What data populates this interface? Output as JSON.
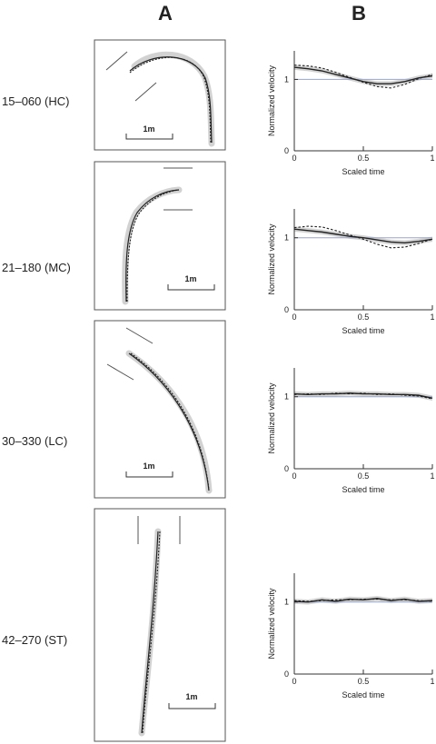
{
  "columns": [
    "A",
    "B"
  ],
  "conditions": [
    "15–060 (HC)",
    "21–180 (MC)",
    "30–330 (LC)",
    "42–270 (ST)"
  ],
  "scale_bar_label": "1m",
  "chart_data": [
    {
      "type": "line",
      "condition": "15–060 (HC)",
      "xlabel": "Scaled time",
      "ylabel": "Normalized velocity",
      "xlim": [
        0,
        1
      ],
      "ylim": [
        0,
        1.4
      ],
      "xticks": [
        "0",
        "0.5",
        "1"
      ],
      "yticks": [
        "0",
        "1"
      ],
      "grid": false,
      "reference_line": 1.0,
      "series": [
        {
          "style": "solid",
          "x": [
            0,
            0.1,
            0.2,
            0.3,
            0.4,
            0.5,
            0.6,
            0.7,
            0.8,
            0.9,
            1.0
          ],
          "y": [
            1.17,
            1.15,
            1.12,
            1.07,
            1.02,
            0.97,
            0.94,
            0.94,
            0.97,
            1.02,
            1.05
          ]
        },
        {
          "style": "dashed",
          "x": [
            0,
            0.1,
            0.2,
            0.3,
            0.4,
            0.5,
            0.6,
            0.7,
            0.8,
            0.9,
            1.0
          ],
          "y": [
            1.2,
            1.19,
            1.16,
            1.1,
            1.03,
            0.96,
            0.9,
            0.88,
            0.93,
            1.01,
            1.07
          ]
        }
      ]
    },
    {
      "type": "line",
      "condition": "21–180 (MC)",
      "xlabel": "Scaled time",
      "ylabel": "Normalized velocity",
      "xlim": [
        0,
        1
      ],
      "ylim": [
        0,
        1.4
      ],
      "xticks": [
        "0",
        "0.5",
        "1"
      ],
      "yticks": [
        "0",
        "1"
      ],
      "grid": false,
      "reference_line": 1.0,
      "series": [
        {
          "style": "solid",
          "x": [
            0,
            0.1,
            0.2,
            0.3,
            0.4,
            0.5,
            0.6,
            0.7,
            0.8,
            0.9,
            1.0
          ],
          "y": [
            1.12,
            1.1,
            1.08,
            1.05,
            1.02,
            1.0,
            0.97,
            0.94,
            0.93,
            0.95,
            0.98
          ]
        },
        {
          "style": "dashed",
          "x": [
            0,
            0.1,
            0.2,
            0.3,
            0.4,
            0.5,
            0.6,
            0.7,
            0.8,
            0.9,
            1.0
          ],
          "y": [
            1.14,
            1.16,
            1.15,
            1.1,
            1.04,
            0.98,
            0.91,
            0.86,
            0.87,
            0.92,
            0.98
          ]
        }
      ]
    },
    {
      "type": "line",
      "condition": "30–330 (LC)",
      "xlabel": "Scaled time",
      "ylabel": "Normalized velocity",
      "xlim": [
        0,
        1
      ],
      "ylim": [
        0,
        1.4
      ],
      "xticks": [
        "0",
        "0.5",
        "1"
      ],
      "yticks": [
        "0",
        "1"
      ],
      "grid": false,
      "reference_line": 1.0,
      "series": [
        {
          "style": "solid",
          "x": [
            0,
            0.1,
            0.2,
            0.3,
            0.4,
            0.5,
            0.6,
            0.7,
            0.8,
            0.9,
            1.0
          ],
          "y": [
            1.04,
            1.03,
            1.04,
            1.04,
            1.05,
            1.04,
            1.04,
            1.03,
            1.03,
            1.02,
            0.98
          ]
        },
        {
          "style": "dashed",
          "x": [
            0,
            0.1,
            0.2,
            0.3,
            0.4,
            0.5,
            0.6,
            0.7,
            0.8,
            0.9,
            1.0
          ],
          "y": [
            1.03,
            1.04,
            1.03,
            1.05,
            1.04,
            1.05,
            1.03,
            1.04,
            1.02,
            1.01,
            0.97
          ]
        }
      ]
    },
    {
      "type": "line",
      "condition": "42–270 (ST)",
      "xlabel": "Scaled time",
      "ylabel": "Normalized velocity",
      "xlim": [
        0,
        1
      ],
      "ylim": [
        0,
        1.4
      ],
      "xticks": [
        "0",
        "0.5",
        "1"
      ],
      "yticks": [
        "0",
        "1"
      ],
      "grid": false,
      "reference_line": 1.0,
      "series": [
        {
          "style": "solid",
          "x": [
            0,
            0.1,
            0.2,
            0.3,
            0.4,
            0.5,
            0.6,
            0.7,
            0.8,
            0.9,
            1.0
          ],
          "y": [
            1.01,
            1.0,
            1.03,
            1.01,
            1.04,
            1.03,
            1.05,
            1.02,
            1.04,
            1.01,
            1.02
          ]
        },
        {
          "style": "dashed",
          "x": [
            0,
            0.1,
            0.2,
            0.3,
            0.4,
            0.5,
            0.6,
            0.7,
            0.8,
            0.9,
            1.0
          ],
          "y": [
            1.02,
            1.01,
            1.02,
            1.03,
            1.03,
            1.04,
            1.04,
            1.03,
            1.03,
            1.02,
            1.01
          ]
        }
      ]
    }
  ]
}
